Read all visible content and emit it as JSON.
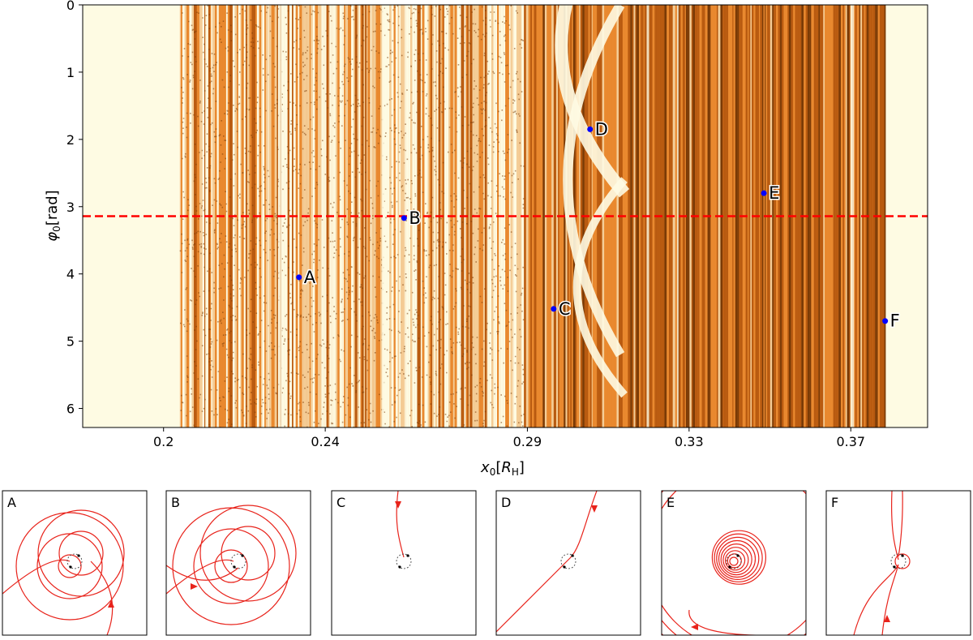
{
  "chart_data": [
    {
      "type": "heatmap",
      "title": "",
      "xlabel": "x₀[Rʜ]",
      "xlabel_parts": {
        "symbol": "x",
        "sub": "0",
        "unit": "R",
        "unit_sub": "H"
      },
      "ylabel": "φ₀[rad]",
      "ylabel_parts": {
        "symbol": "φ",
        "sub": "0",
        "unit": "rad"
      },
      "xlim": [
        0.18,
        0.389
      ],
      "ylim": [
        6.283,
        0
      ],
      "xticks": [
        0.2,
        0.24,
        0.29,
        0.33,
        0.37
      ],
      "xtick_labels": [
        "0.2",
        "0.24",
        "0.29",
        "0.33",
        "0.37"
      ],
      "yticks": [
        0,
        1,
        2,
        3,
        4,
        5,
        6
      ],
      "ytick_labels": [
        "0",
        "1",
        "2",
        "3",
        "4",
        "5",
        "6"
      ],
      "grid": false,
      "colors": {
        "background": "#fefbe3",
        "light": "#f4cd97",
        "mid": "#e9892f",
        "dark": "#b85a10",
        "darkest": "#7a3a06",
        "point": "#0000ff",
        "reference_line": "#ff0000"
      },
      "reference_line": {
        "y": 3.1416,
        "style": "dashed"
      },
      "points": [
        {
          "label": "A",
          "x": 0.2335,
          "y": 4.05
        },
        {
          "label": "B",
          "x": 0.2595,
          "y": 3.17
        },
        {
          "label": "C",
          "x": 0.2965,
          "y": 4.52
        },
        {
          "label": "D",
          "x": 0.3055,
          "y": 1.85
        },
        {
          "label": "E",
          "x": 0.3485,
          "y": 2.8
        },
        {
          "label": "F",
          "x": 0.3785,
          "y": 4.7
        }
      ]
    },
    {
      "type": "trajectory_panels",
      "panels": [
        {
          "label": "A",
          "pattern": "spiral-loops",
          "arrow": "up"
        },
        {
          "label": "B",
          "pattern": "spiral-loops",
          "arrow": "right"
        },
        {
          "label": "C",
          "pattern": "capture",
          "arrow": "down"
        },
        {
          "label": "D",
          "pattern": "flyby",
          "arrow": "down"
        },
        {
          "label": "E",
          "pattern": "circular-orbits",
          "arrow": "left"
        },
        {
          "label": "F",
          "pattern": "close-encounter",
          "arrow": "up"
        }
      ]
    }
  ]
}
